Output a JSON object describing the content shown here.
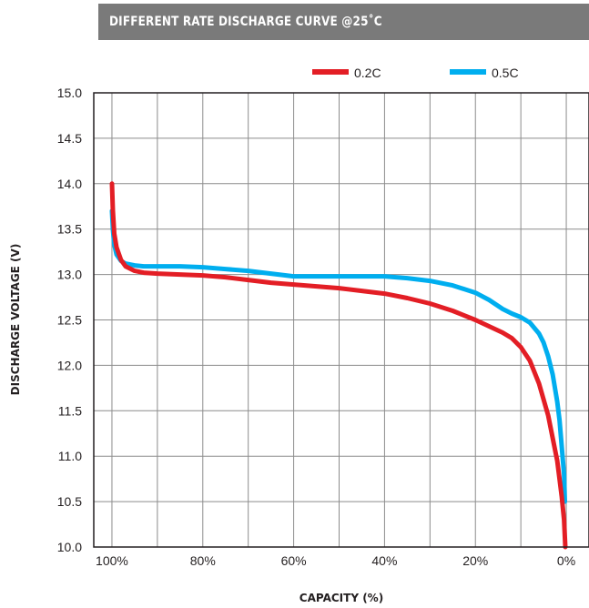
{
  "chart_data": {
    "type": "line",
    "title": "Different rate discharge curve @25˚C",
    "xlabel": "CAPACITY (%)",
    "ylabel": "DISCHARGE VOLTAGE (V)",
    "x_ticks": [
      "100%",
      "80%",
      "60%",
      "40%",
      "20%",
      "0%"
    ],
    "x_tick_values": [
      100,
      80,
      60,
      40,
      20,
      0
    ],
    "xlim": [
      104,
      -5
    ],
    "ylim": [
      10.0,
      15.0
    ],
    "y_ticks": [
      "10.0",
      "10.5",
      "11.0",
      "11.5",
      "12.0",
      "12.5",
      "13.0",
      "13.5",
      "14.0",
      "14.5",
      "15.0"
    ],
    "y_tick_values": [
      10.0,
      10.5,
      11.0,
      11.5,
      12.0,
      12.5,
      13.0,
      13.5,
      14.0,
      14.5,
      15.0
    ],
    "grid": true,
    "legend_position": "top",
    "series": [
      {
        "name": "0.2C",
        "color": "#e31e25",
        "x": [
          100,
          99.8,
          99.5,
          99,
          98,
          97,
          95,
          93,
          90,
          85,
          80,
          75,
          70,
          65,
          60,
          55,
          50,
          45,
          40,
          35,
          30,
          25,
          20,
          17,
          14,
          12,
          10,
          8,
          6,
          4,
          3,
          2,
          1.5,
          1,
          0.5,
          0.2
        ],
        "values": [
          14.0,
          13.7,
          13.45,
          13.3,
          13.16,
          13.09,
          13.04,
          13.02,
          13.01,
          13.0,
          12.99,
          12.97,
          12.94,
          12.91,
          12.89,
          12.87,
          12.85,
          12.82,
          12.79,
          12.74,
          12.68,
          12.6,
          12.5,
          12.43,
          12.36,
          12.3,
          12.2,
          12.05,
          11.8,
          11.45,
          11.2,
          10.95,
          10.75,
          10.55,
          10.3,
          10.0
        ]
      },
      {
        "name": "0.5C",
        "color": "#00aeef",
        "x": [
          100,
          99.8,
          99.5,
          99,
          98,
          97,
          95,
          93,
          90,
          85,
          80,
          75,
          70,
          65,
          60,
          55,
          50,
          45,
          40,
          35,
          30,
          25,
          20,
          17,
          14,
          12,
          10,
          8,
          6,
          5,
          4,
          3,
          2,
          1.5,
          1,
          0.5,
          0.3
        ],
        "values": [
          13.7,
          13.5,
          13.33,
          13.22,
          13.15,
          13.12,
          13.1,
          13.09,
          13.09,
          13.09,
          13.08,
          13.06,
          13.04,
          13.01,
          12.98,
          12.98,
          12.98,
          12.98,
          12.98,
          12.96,
          12.93,
          12.88,
          12.8,
          12.72,
          12.62,
          12.57,
          12.53,
          12.47,
          12.35,
          12.25,
          12.1,
          11.9,
          11.6,
          11.4,
          11.1,
          10.8,
          10.5
        ]
      }
    ]
  }
}
